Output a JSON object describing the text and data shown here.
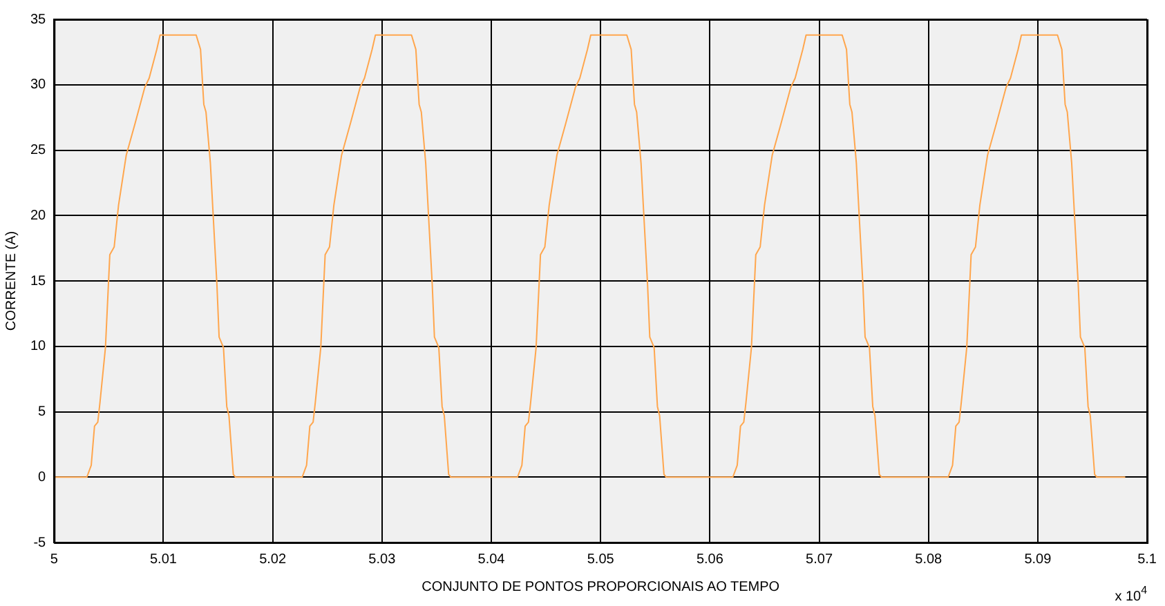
{
  "chart_data": {
    "type": "line",
    "xlabel": "CONJUNTO DE PONTOS PROPORCIONAIS AO TEMPO",
    "ylabel": "CORRENTE (A)",
    "annotations": [
      "x 10$^{4}$"
    ],
    "x": [
      5.0,
      5.003,
      5.0034,
      5.0037,
      5.004,
      5.0042,
      5.0047,
      5.0051,
      5.0055,
      5.0059,
      5.0066,
      5.0074,
      5.0083,
      5.0087,
      5.0094,
      5.0097,
      5.013,
      5.0134,
      5.0137,
      5.0139,
      5.0143,
      5.0149,
      5.0151,
      5.0155,
      5.0158,
      5.016,
      5.0164,
      5.0166,
      5.0227,
      5.0231,
      5.0234,
      5.0237,
      5.0239,
      5.0244,
      5.0248,
      5.0252,
      5.0256,
      5.0263,
      5.0271,
      5.028,
      5.0284,
      5.0291,
      5.0294,
      5.0327,
      5.0331,
      5.0334,
      5.0336,
      5.034,
      5.0346,
      5.0348,
      5.0352,
      5.0355,
      5.0357,
      5.0361,
      5.0363,
      5.0424,
      5.0428,
      5.0431,
      5.0434,
      5.0436,
      5.0441,
      5.0445,
      5.0449,
      5.0453,
      5.046,
      5.0468,
      5.0477,
      5.0481,
      5.0488,
      5.0491,
      5.0524,
      5.0528,
      5.0531,
      5.0533,
      5.0537,
      5.0543,
      5.0545,
      5.0549,
      5.0552,
      5.0554,
      5.0558,
      5.056,
      5.0621,
      5.0625,
      5.0628,
      5.0631,
      5.0633,
      5.0638,
      5.0642,
      5.0646,
      5.065,
      5.0657,
      5.0665,
      5.0674,
      5.0678,
      5.0685,
      5.0688,
      5.0721,
      5.0725,
      5.0728,
      5.073,
      5.0734,
      5.074,
      5.0742,
      5.0746,
      5.0749,
      5.0751,
      5.0755,
      5.0757,
      5.0818,
      5.0822,
      5.0825,
      5.0828,
      5.083,
      5.0835,
      5.0839,
      5.0843,
      5.0847,
      5.0854,
      5.0862,
      5.0871,
      5.0875,
      5.0882,
      5.0885,
      5.0918,
      5.0922,
      5.0925,
      5.0927,
      5.0931,
      5.0937,
      5.0939,
      5.0943,
      5.0946,
      5.0948,
      5.0952,
      5.0954,
      5.098
    ],
    "series": [
      {
        "color": "#ffa64d",
        "values": [
          0,
          0,
          0.9,
          3.9,
          4.2,
          5.7,
          9.9,
          17.0,
          17.6,
          20.8,
          24.6,
          27.0,
          29.8,
          30.5,
          32.7,
          33.8,
          33.8,
          32.7,
          28.5,
          27.9,
          24.0,
          14.7,
          10.7,
          9.9,
          5.4,
          4.7,
          0.2,
          0,
          0,
          0.9,
          3.9,
          4.2,
          5.7,
          9.9,
          17.0,
          17.6,
          20.8,
          24.6,
          27.0,
          29.8,
          30.5,
          32.7,
          33.8,
          33.8,
          32.7,
          28.5,
          27.9,
          24.0,
          14.7,
          10.7,
          9.9,
          5.4,
          4.7,
          0.2,
          0,
          0,
          0.9,
          3.9,
          4.2,
          5.7,
          9.9,
          17.0,
          17.6,
          20.8,
          24.6,
          27.0,
          29.8,
          30.5,
          32.7,
          33.8,
          33.8,
          32.7,
          28.5,
          27.9,
          24.0,
          14.7,
          10.7,
          9.9,
          5.4,
          4.7,
          0.2,
          0,
          0,
          0.9,
          3.9,
          4.2,
          5.7,
          9.9,
          17.0,
          17.6,
          20.8,
          24.6,
          27.0,
          29.8,
          30.5,
          32.7,
          33.8,
          33.8,
          32.7,
          28.5,
          27.9,
          24.0,
          14.7,
          10.7,
          9.9,
          5.4,
          4.7,
          0.2,
          0,
          0,
          0.9,
          3.9,
          4.2,
          5.7,
          9.9,
          17.0,
          17.6,
          20.8,
          24.6,
          27.0,
          29.8,
          30.5,
          32.7,
          33.8,
          33.8,
          32.7,
          28.5,
          27.9,
          24.0,
          14.7,
          10.7,
          9.9,
          5.4,
          4.7,
          0.2,
          0,
          0
        ]
      }
    ],
    "xlim": [
      5.0,
      5.1
    ],
    "xticks": [
      {
        "value": 5.0,
        "label": "5"
      },
      5.01,
      5.02,
      5.03,
      5.04,
      5.05,
      5.06,
      5.07,
      5.08,
      5.09,
      {
        "value": 5.1,
        "label": "5.1"
      }
    ],
    "ylim": [
      -5,
      35
    ],
    "yticks": [
      -5,
      0,
      5,
      10,
      15,
      20,
      25,
      30,
      35
    ],
    "grid": true,
    "legend": false,
    "marker": "none",
    "line_style": "solid"
  }
}
